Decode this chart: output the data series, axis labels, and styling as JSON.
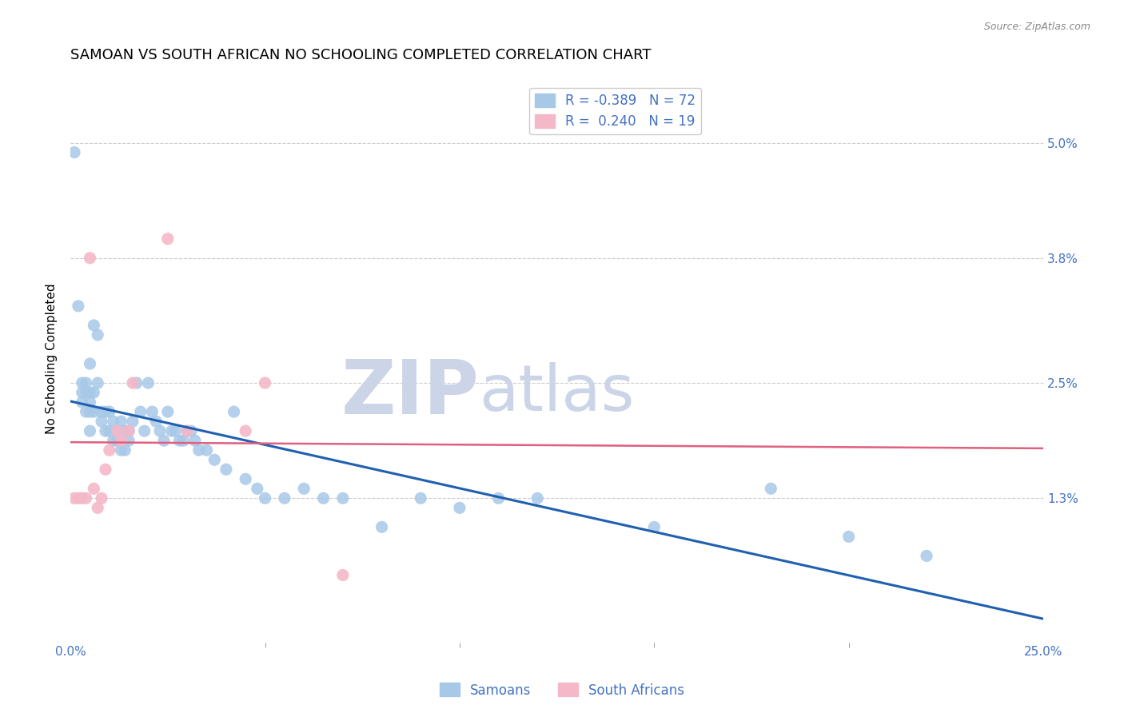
{
  "title": "SAMOAN VS SOUTH AFRICAN NO SCHOOLING COMPLETED CORRELATION CHART",
  "source": "Source: ZipAtlas.com",
  "ylabel": "No Schooling Completed",
  "y_tick_labels": [
    "1.3%",
    "2.5%",
    "3.8%",
    "5.0%"
  ],
  "y_tick_values": [
    0.013,
    0.025,
    0.038,
    0.05
  ],
  "x_min": 0.0,
  "x_max": 0.25,
  "y_min": -0.002,
  "y_max": 0.057,
  "samoans_color": "#a8c8e8",
  "south_africans_color": "#f4b8c8",
  "samoans_line_color": "#2060b0",
  "south_africans_line_color": "#e06080",
  "south_africans_dash_color": "#d0a0b0",
  "legend_samoans_label": "Samoans",
  "legend_south_africans_label": "South Africans",
  "R_samoans": -0.389,
  "N_samoans": 72,
  "R_south_africans": 0.24,
  "N_south_africans": 19,
  "samoans_x": [
    0.001,
    0.002,
    0.003,
    0.003,
    0.003,
    0.004,
    0.004,
    0.004,
    0.005,
    0.005,
    0.005,
    0.005,
    0.005,
    0.006,
    0.006,
    0.006,
    0.007,
    0.007,
    0.008,
    0.008,
    0.009,
    0.009,
    0.01,
    0.01,
    0.011,
    0.011,
    0.012,
    0.012,
    0.013,
    0.013,
    0.014,
    0.014,
    0.015,
    0.015,
    0.016,
    0.017,
    0.018,
    0.019,
    0.02,
    0.021,
    0.022,
    0.023,
    0.024,
    0.025,
    0.026,
    0.027,
    0.028,
    0.029,
    0.03,
    0.031,
    0.032,
    0.033,
    0.035,
    0.037,
    0.04,
    0.042,
    0.045,
    0.048,
    0.05,
    0.055,
    0.06,
    0.065,
    0.07,
    0.08,
    0.09,
    0.1,
    0.11,
    0.12,
    0.15,
    0.18,
    0.2,
    0.22
  ],
  "samoans_y": [
    0.049,
    0.033,
    0.025,
    0.024,
    0.023,
    0.025,
    0.024,
    0.022,
    0.027,
    0.024,
    0.023,
    0.022,
    0.02,
    0.031,
    0.024,
    0.022,
    0.03,
    0.025,
    0.022,
    0.021,
    0.022,
    0.02,
    0.022,
    0.02,
    0.021,
    0.019,
    0.02,
    0.019,
    0.021,
    0.018,
    0.02,
    0.018,
    0.02,
    0.019,
    0.021,
    0.025,
    0.022,
    0.02,
    0.025,
    0.022,
    0.021,
    0.02,
    0.019,
    0.022,
    0.02,
    0.02,
    0.019,
    0.019,
    0.02,
    0.02,
    0.019,
    0.018,
    0.018,
    0.017,
    0.016,
    0.022,
    0.015,
    0.014,
    0.013,
    0.013,
    0.014,
    0.013,
    0.013,
    0.01,
    0.013,
    0.012,
    0.013,
    0.013,
    0.01,
    0.014,
    0.009,
    0.007
  ],
  "south_africans_x": [
    0.001,
    0.002,
    0.003,
    0.004,
    0.005,
    0.006,
    0.007,
    0.008,
    0.009,
    0.01,
    0.012,
    0.013,
    0.015,
    0.016,
    0.025,
    0.03,
    0.045,
    0.05,
    0.07
  ],
  "south_africans_y": [
    0.013,
    0.013,
    0.013,
    0.013,
    0.038,
    0.014,
    0.012,
    0.013,
    0.016,
    0.018,
    0.02,
    0.019,
    0.02,
    0.025,
    0.04,
    0.02,
    0.02,
    0.025,
    0.005
  ],
  "background_color": "#ffffff",
  "grid_color": "#cccccc",
  "watermark_zip": "ZIP",
  "watermark_atlas": "atlas",
  "watermark_color": "#ccd5e8",
  "title_fontsize": 13,
  "axis_label_fontsize": 11,
  "tick_fontsize": 11,
  "legend_fontsize": 12,
  "dot_size": 120
}
